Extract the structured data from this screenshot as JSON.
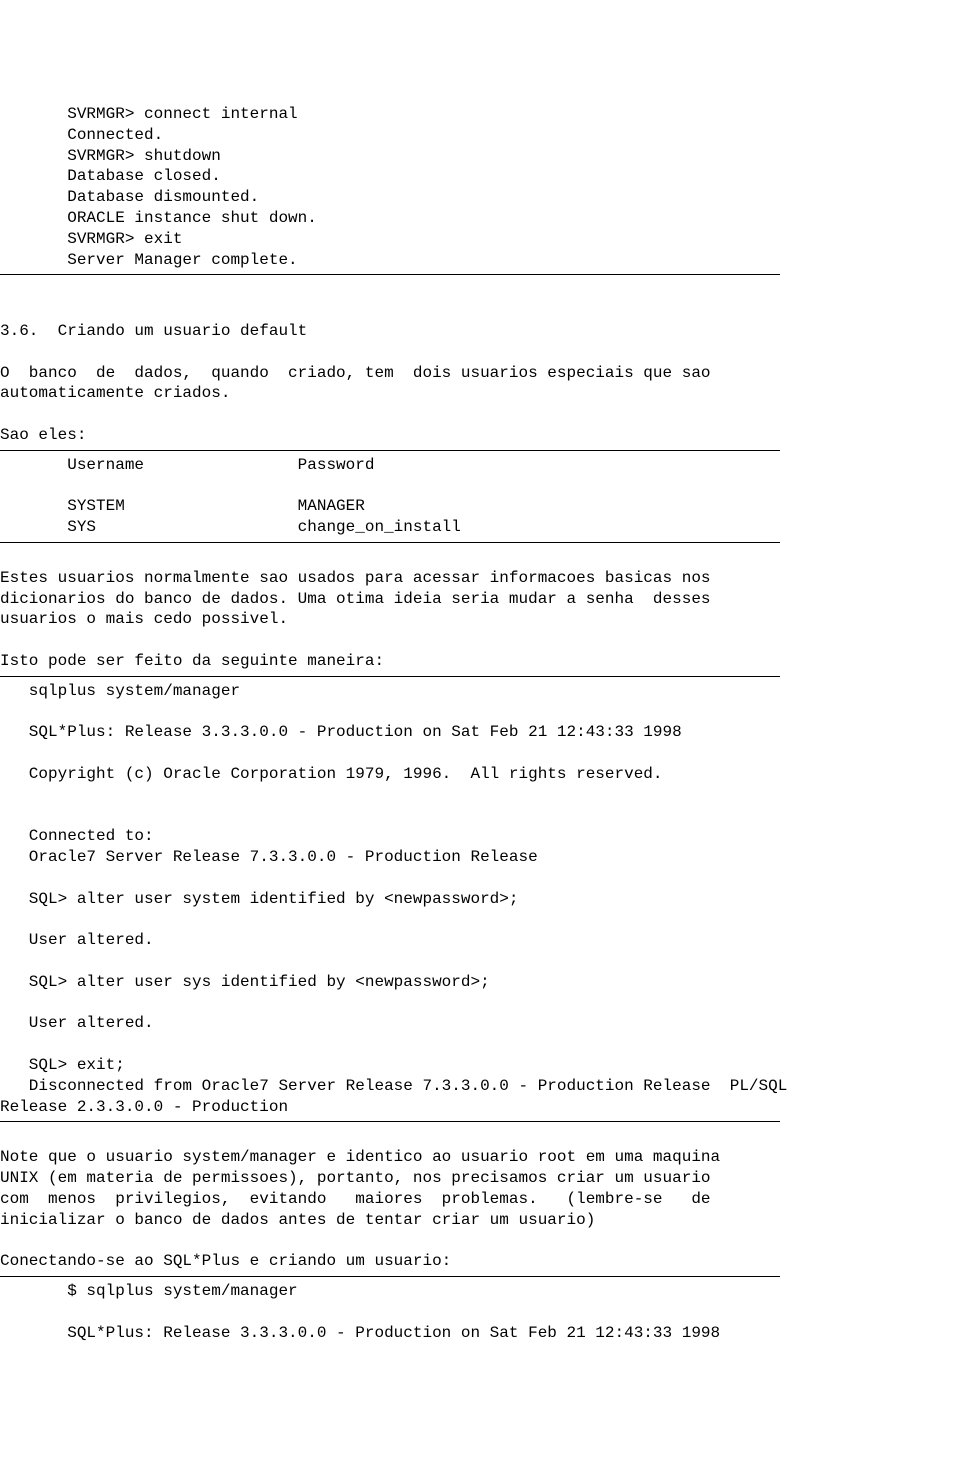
{
  "block1": {
    "l1": "       SVRMGR> connect internal",
    "l2": "       Connected.",
    "l3": "       SVRMGR> shutdown",
    "l4": "       Database closed.",
    "l5": "       Database dismounted.",
    "l6": "       ORACLE instance shut down.",
    "l7": "       SVRMGR> exit",
    "l8": "       Server Manager complete."
  },
  "section": {
    "heading": "3.6.  Criando um usuario default",
    "p1l1": "O  banco  de  dados,  quando  criado, tem  dois usuarios especiais que sao",
    "p1l2": "automaticamente criados.",
    "p2": "Sao eles:"
  },
  "table": {
    "h1": "       Username                Password",
    "r1": "       SYSTEM                  MANAGER",
    "r2": "       SYS                     change_on_install"
  },
  "para2": {
    "l1": "Estes usuarios normalmente sao usados para acessar informacoes basicas nos",
    "l2": "dicionarios do banco de dados. Uma otima ideia seria mudar a senha  desses",
    "l3": "usuarios o mais cedo possivel.",
    "l5": "Isto pode ser feito da seguinte maneira:"
  },
  "sql1": {
    "l1": "   sqlplus system/manager",
    "l3": "   SQL*Plus: Release 3.3.3.0.0 - Production on Sat Feb 21 12:43:33 1998",
    "l5": "   Copyright (c) Oracle Corporation 1979, 1996.  All rights reserved.",
    "l8": "   Connected to:",
    "l9": "   Oracle7 Server Release 7.3.3.0.0 - Production Release",
    "l11": "   SQL> alter user system identified by <newpassword>;",
    "l13": "   User altered.",
    "l15": "   SQL> alter user sys identified by <newpassword>;",
    "l17": "   User altered.",
    "l19": "   SQL> exit;",
    "l20": "   Disconnected from Oracle7 Server Release 7.3.3.0.0 - Production Release  PL/SQL",
    "l21": "Release 2.3.3.0.0 - Production"
  },
  "para3": {
    "l1": "Note que o usuario system/manager e identico ao usuario root em uma maquina",
    "l2": "UNIX (em materia de permissoes), portanto, nos precisamos criar um usuario",
    "l3": "com  menos  privilegios,  evitando   maiores  problemas.   (lembre-se   de",
    "l4": "inicializar o banco de dados antes de tentar criar um usuario)",
    "l6": "Conectando-se ao SQL*Plus e criando um usuario:"
  },
  "sql2": {
    "l1": "       $ sqlplus system/manager",
    "l3": "       SQL*Plus: Release 3.3.3.0.0 - Production on Sat Feb 21 12:43:33 1998"
  }
}
